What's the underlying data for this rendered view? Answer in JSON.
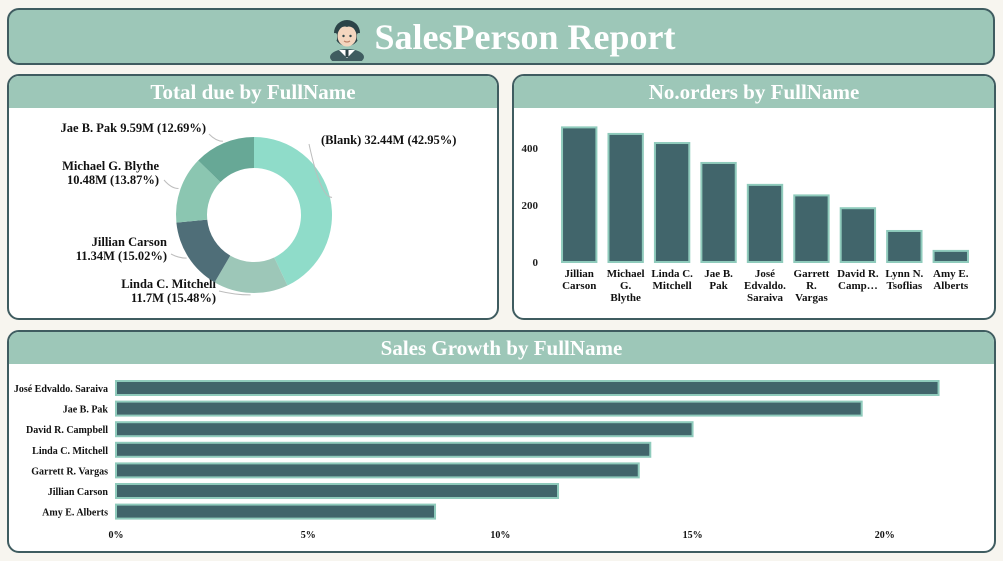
{
  "header": {
    "title": "SalesPerson Report",
    "logo_icon": "salesperson-avatar-icon"
  },
  "donut": {
    "title": "Total due by FullName",
    "chart_data": {
      "type": "pie",
      "variant": "donut",
      "slices": [
        {
          "label": "(Blank)",
          "value": 32.44,
          "value_text": "32.44M",
          "percent": 42.95,
          "percent_text": "(42.95%)",
          "color": "#8fdcc9"
        },
        {
          "label": "Linda C. Mitchell",
          "value": 11.7,
          "value_text": "11.7M",
          "percent": 15.48,
          "percent_text": "(15.48%)",
          "color": "#9dc7b8"
        },
        {
          "label": "Jillian Carson",
          "value": 11.34,
          "value_text": "11.34M",
          "percent": 15.02,
          "percent_text": "(15.02%)",
          "color": "#4f6e78"
        },
        {
          "label": "Michael G. Blythe",
          "value": 10.48,
          "value_text": "10.48M",
          "percent": 13.87,
          "percent_text": "(13.87%)",
          "color": "#8bc6b1"
        },
        {
          "label": "Jae B. Pak",
          "value": 9.59,
          "value_text": "9.59M",
          "percent": 12.69,
          "percent_text": "(12.69%)",
          "color": "#67a896"
        }
      ]
    }
  },
  "orders": {
    "title": "No.orders by FullName",
    "chart_data": {
      "type": "bar",
      "categories": [
        [
          "Jillian",
          "Carson"
        ],
        [
          "Michael",
          "G.",
          "Blythe"
        ],
        [
          "Linda C.",
          "Mitchell"
        ],
        [
          "Jae B.",
          "Pak"
        ],
        [
          "José",
          "Edvaldo.",
          "Saraiva"
        ],
        [
          "Garrett",
          "R.",
          "Vargas"
        ],
        [
          "David R.",
          "Camp…"
        ],
        [
          "Lynn N.",
          "Tsoflias"
        ],
        [
          "Amy E.",
          "Alberts"
        ]
      ],
      "values": [
        473,
        450,
        418,
        348,
        271,
        234,
        189,
        109,
        39
      ],
      "yticks": [
        0,
        200,
        400
      ],
      "ylim": [
        0,
        520
      ],
      "bar_color": "#41656b",
      "bar_border": "#8fcbbc"
    }
  },
  "growth": {
    "title": "Sales Growth by FullName",
    "chart_data": {
      "type": "bar",
      "orientation": "horizontal",
      "categories": [
        "José Edvaldo. Saraiva",
        "Jae B. Pak",
        "David R. Campbell",
        "Linda C. Mitchell",
        "Garrett R. Vargas",
        "Jillian Carson",
        "Amy E. Alberts"
      ],
      "values": [
        21.4,
        19.4,
        15.0,
        13.9,
        13.6,
        11.5,
        8.3
      ],
      "unit": "%",
      "xticks": [
        "0%",
        "5%",
        "10%",
        "15%",
        "20%"
      ],
      "xtick_values": [
        0,
        5,
        10,
        15,
        20
      ],
      "xlim": [
        0,
        22.4
      ],
      "bar_color": "#41656b",
      "bar_border": "#8fcbbc"
    }
  }
}
